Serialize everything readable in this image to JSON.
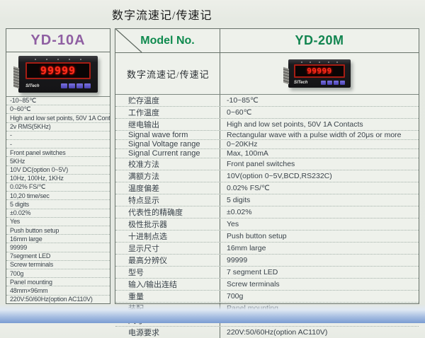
{
  "page": {
    "title": "数字流速记/传速记"
  },
  "left_panel": {
    "model": "YD-10A",
    "model_color": "#8f5fa2",
    "meter": {
      "display_value": "99999",
      "logo": "SITech"
    },
    "specs": [
      "-10~85℃",
      "0~60℃",
      "High and low set points, 50V 1A Contacts",
      "2v RMS(5KHz)",
      "-",
      "-",
      "Front panel switches",
      "5KHz",
      "10V DC(option 0~5V)",
      "10Hz, 100Hz, 1KHz",
      "0.02% FS/℃",
      "10,20 time/sec",
      "5 digits",
      "±0.02%",
      "Yes",
      "Push button setup",
      "16mm large",
      "99999",
      "7segment LED",
      "Screw terminals",
      "700g",
      "Panel mounting",
      "48mm×96mm",
      "220V:50/60Hz(option AC110V)"
    ]
  },
  "right_panel": {
    "header_label": "Model No.",
    "model": "YD-20M",
    "model_color": "#128550",
    "subtitle": "数字流速记/传速记",
    "meter": {
      "display_value": "99999",
      "logo": "SITech"
    },
    "rows": [
      {
        "label": "贮存温度",
        "value": "-10~85℃"
      },
      {
        "label": "工作温度",
        "value": "0~60℃"
      },
      {
        "label": "继电输出",
        "value": "High and low set points, 50V 1A Contacts"
      },
      {
        "label": "Signal wave form",
        "value": "Rectangular wave with a pulse width of 20μs or more"
      },
      {
        "label": "Signal Voltage range",
        "value": "0~20KHz"
      },
      {
        "label": "Signal Current range",
        "value": "Max, 100mA"
      },
      {
        "label": "校准方法",
        "value": "Front panel switches"
      },
      {
        "label": "满额方法",
        "value": "10V(option 0~5V,BCD,RS232C)"
      },
      {
        "label": "温度偏差",
        "value": "0.02% FS/℃"
      },
      {
        "label": "特点显示",
        "value": "5 digits"
      },
      {
        "label": "代表性的精确度",
        "value": "±0.02%"
      },
      {
        "label": "极性批示器",
        "value": "Yes"
      },
      {
        "label": "十进制点选",
        "value": "Push button setup"
      },
      {
        "label": "显示尺寸",
        "value": "16mm large"
      },
      {
        "label": "最高分辨仪",
        "value": "99999"
      },
      {
        "label": "型号",
        "value": "7 segment LED"
      },
      {
        "label": "输入/输出连结",
        "value": "Screw terminals"
      },
      {
        "label": "重量",
        "value": "700g"
      },
      {
        "label": "装配",
        "value": "Panel mounting"
      },
      {
        "label": "尺寸",
        "value": "48mm×96mm"
      },
      {
        "label": "电源要求",
        "value": "220V:50/60Hz(option AC110V)"
      }
    ]
  }
}
